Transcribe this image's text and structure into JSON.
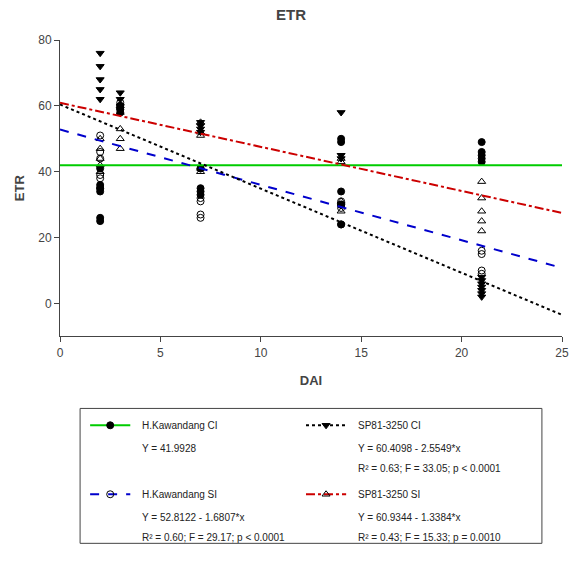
{
  "chart_data": {
    "type": "scatter",
    "title": "ETR",
    "xlabel": "DAI",
    "ylabel": "ETR",
    "xlim": [
      0,
      25
    ],
    "ylim": [
      -10,
      80
    ],
    "xticks": [
      0,
      5,
      10,
      15,
      20,
      25
    ],
    "yticks": [
      0,
      20,
      40,
      60,
      80
    ],
    "grid": false,
    "series": [
      {
        "name": "H.Kawandang CI",
        "type": "scatter",
        "marker": "circle",
        "color": "#000000",
        "x": [
          2,
          2,
          2,
          2,
          2,
          2,
          3,
          3,
          3,
          7,
          7,
          7,
          7,
          14,
          14,
          14,
          14,
          14,
          21,
          21,
          21,
          21,
          21
        ],
        "values": [
          41,
          36,
          35,
          34,
          26,
          25,
          60,
          59,
          58,
          41,
          35,
          34,
          33,
          50,
          49,
          34,
          30,
          24,
          49,
          46,
          45,
          44,
          43
        ]
      },
      {
        "name": "H.Kawandang SI",
        "type": "scatter",
        "marker": "circle-open",
        "color": "#000000",
        "x": [
          2,
          2,
          2,
          2,
          2,
          2,
          3,
          3,
          3,
          7,
          7,
          7,
          7,
          7,
          14,
          14,
          14,
          14,
          14,
          21,
          21,
          21,
          21
        ],
        "values": [
          51,
          46,
          44,
          39,
          38,
          35,
          61,
          60,
          59,
          41,
          32,
          31,
          27,
          26,
          31,
          30,
          30,
          29,
          24,
          16,
          15,
          10,
          9
        ]
      },
      {
        "name": "SP81-3250 CI",
        "type": "scatter",
        "marker": "triangle-down",
        "color": "#000000",
        "x": [
          2,
          2,
          2,
          2,
          2,
          3,
          3,
          3,
          3,
          7,
          7,
          7,
          7,
          14,
          14,
          14,
          21,
          21,
          21,
          21,
          21,
          21,
          21
        ],
        "values": [
          76,
          72,
          68,
          65,
          62,
          64,
          62,
          60,
          59,
          55,
          54,
          53,
          52,
          58,
          45,
          44,
          8,
          7,
          6,
          5,
          4,
          3,
          2
        ]
      },
      {
        "name": "SP81-3250 SI",
        "type": "scatter",
        "marker": "triangle-up-open",
        "color": "#000000",
        "x": [
          2,
          2,
          2,
          2,
          2,
          3,
          3,
          3,
          3,
          7,
          7,
          7,
          7,
          7,
          14,
          14,
          14,
          14,
          21,
          21,
          21,
          21,
          21
        ],
        "values": [
          50,
          47,
          44,
          42,
          40,
          58,
          53,
          50,
          47,
          55,
          52,
          51,
          41,
          40,
          44,
          43,
          31,
          28,
          37,
          32,
          28,
          25,
          22
        ]
      },
      {
        "name": "H.Kawandang CI",
        "type": "line",
        "line_style": "solid",
        "color": "#00cc00",
        "x": [
          0,
          25
        ],
        "values": [
          41.9928,
          41.9928
        ],
        "annotations": [
          "Y = 41.9928"
        ]
      },
      {
        "name": "H.Kawandang SI",
        "type": "line",
        "line_style": "dashed",
        "color": "#0000cc",
        "x": [
          0,
          25
        ],
        "values": [
          52.8122,
          10.7947
        ],
        "annotations": [
          "Y = 52.8122 - 1.6807*x",
          "R² = 0.60; F = 29.17; p < 0.0001"
        ]
      },
      {
        "name": "SP81-3250 CI",
        "type": "line",
        "line_style": "dotted",
        "color": "#000000",
        "x": [
          0,
          25
        ],
        "values": [
          60.4098,
          -3.4627
        ],
        "annotations": [
          "Y = 60.4098 - 2.5549*x",
          "R² = 0.63; F = 33.05; p < 0.0001"
        ]
      },
      {
        "name": "SP81-3250 SI",
        "type": "line",
        "line_style": "dashdot",
        "color": "#cc0000",
        "x": [
          0,
          25
        ],
        "values": [
          60.9344,
          27.4744
        ],
        "annotations": [
          "Y = 60.9344 - 1.3384*x",
          "R² = 0.43; F = 15.33; p = 0.0010"
        ]
      }
    ]
  }
}
